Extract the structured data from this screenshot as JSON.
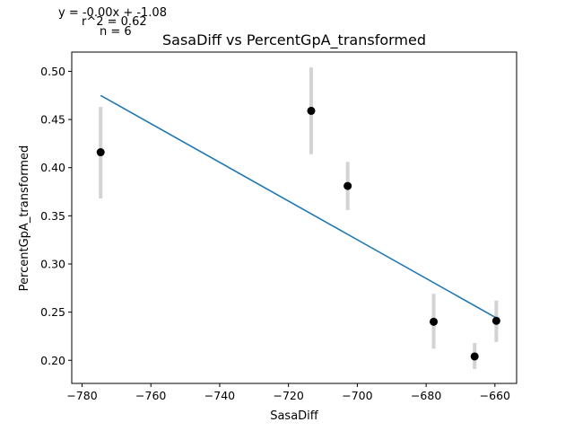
{
  "chart_data": {
    "type": "scatter",
    "title": "SasaDiff vs PercentGpA_transformed",
    "xlabel": "SasaDiff",
    "ylabel": "PercentGpA_transformed",
    "xlim": [
      -783,
      -653.7
    ],
    "ylim": [
      0.176,
      0.52
    ],
    "xticks": [
      -780,
      -760,
      -740,
      -720,
      -700,
      -680,
      -660
    ],
    "xtick_labels": [
      "−780",
      "−760",
      "−740",
      "−720",
      "−700",
      "−680",
      "−660"
    ],
    "yticks": [
      0.2,
      0.25,
      0.3,
      0.35,
      0.4,
      0.45,
      0.5
    ],
    "ytick_labels": [
      "0.20",
      "0.25",
      "0.30",
      "0.35",
      "0.40",
      "0.45",
      "0.50"
    ],
    "grid": false,
    "points": [
      {
        "x": -774.6,
        "y": 0.416,
        "err_low": 0.368,
        "err_high": 0.463
      },
      {
        "x": -713.4,
        "y": 0.459,
        "err_low": 0.414,
        "err_high": 0.504
      },
      {
        "x": -702.8,
        "y": 0.381,
        "err_low": 0.356,
        "err_high": 0.406
      },
      {
        "x": -677.8,
        "y": 0.24,
        "err_low": 0.212,
        "err_high": 0.269
      },
      {
        "x": -665.9,
        "y": 0.204,
        "err_low": 0.191,
        "err_high": 0.218
      },
      {
        "x": -659.6,
        "y": 0.241,
        "err_low": 0.219,
        "err_high": 0.262
      }
    ],
    "fit_line": {
      "x": [
        -774.6,
        -659.6
      ],
      "y": [
        0.475,
        0.244
      ]
    },
    "colors": {
      "points": "#000000",
      "errorbars": "#d3d3d3",
      "fit_line": "#1f77b4"
    },
    "annotations": {
      "equation": "y = -0.00x + -1.08",
      "r2": "r^2 = 0.62",
      "n": "n = 6"
    }
  }
}
